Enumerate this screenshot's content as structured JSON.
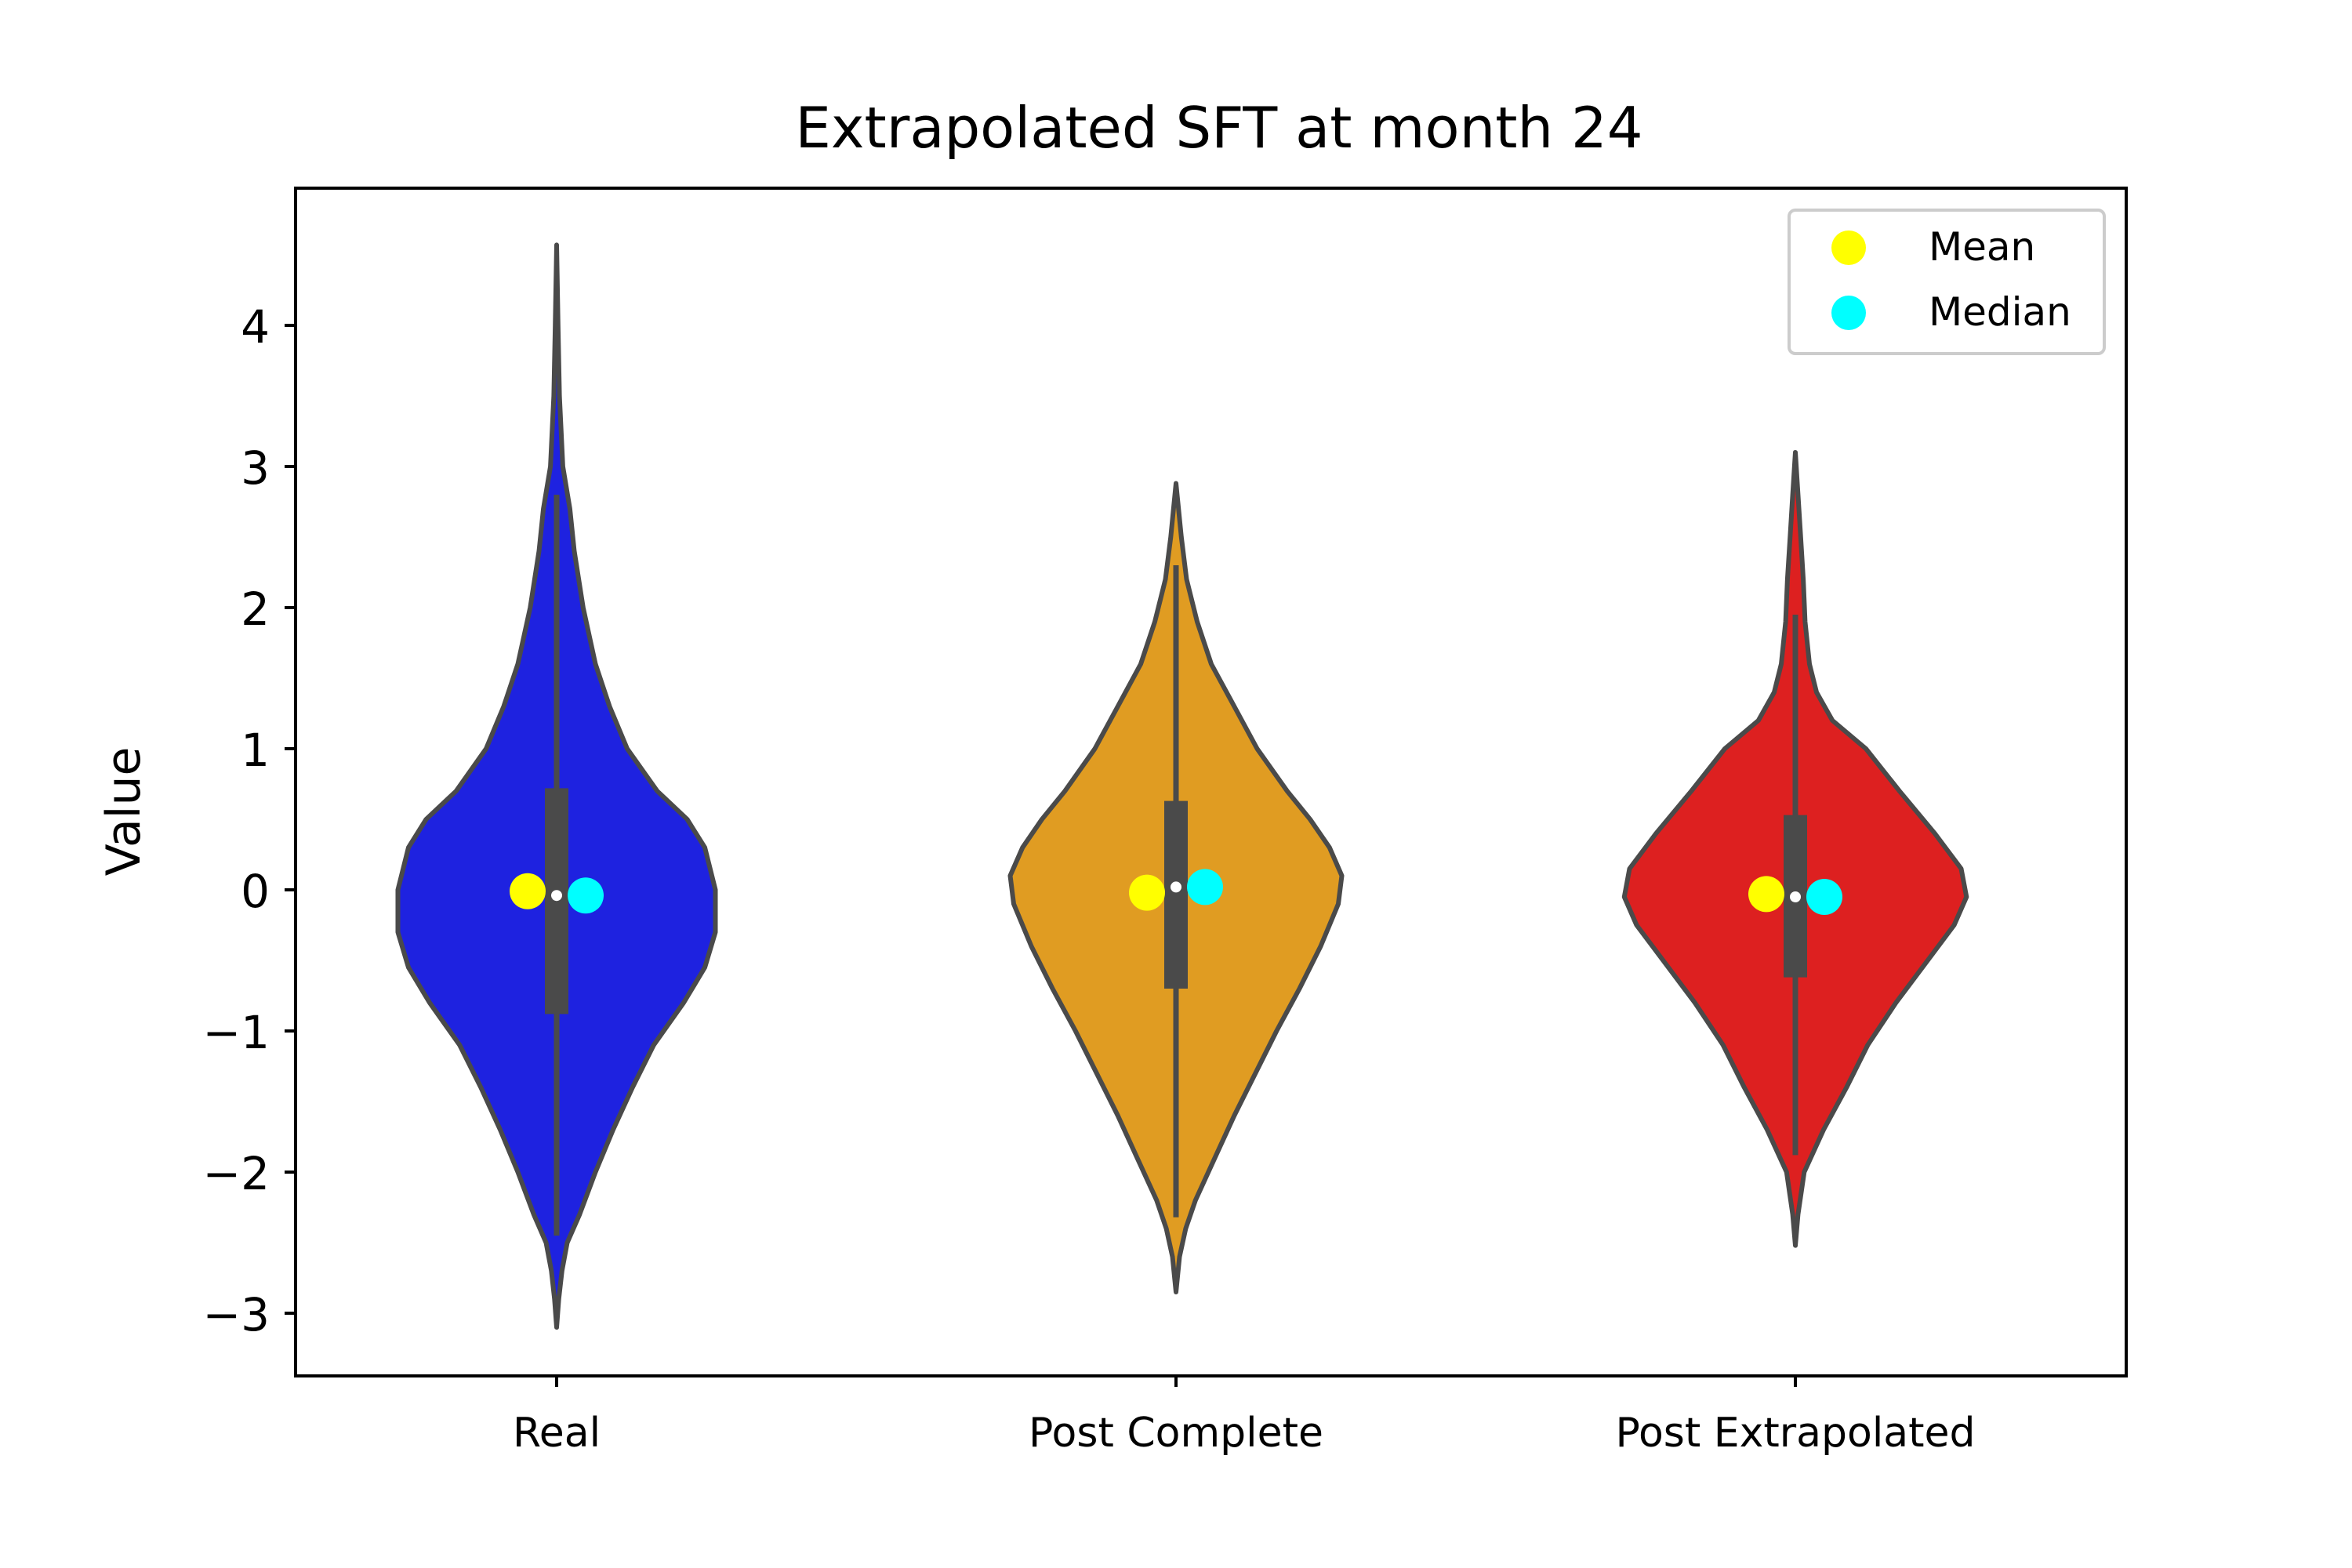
{
  "chart_data": {
    "type": "violin",
    "title": "Extrapolated SFT at month 24",
    "xlabel": "",
    "ylabel": "Value",
    "ylim": [
      -3.5,
      4.9
    ],
    "yticks": [
      -3,
      -2,
      -1,
      0,
      1,
      2,
      3,
      4
    ],
    "ytick_labels": [
      "−3",
      "−2",
      "−1",
      "0",
      "1",
      "2",
      "3",
      "4"
    ],
    "grid": false,
    "legend": {
      "placement": "top-right",
      "entries": [
        {
          "label": "Mean",
          "color": "#ffff00"
        },
        {
          "label": "Median",
          "color": "#00ffff"
        }
      ]
    },
    "categories": [
      "Real",
      "Post Complete",
      "Post Extrapolated"
    ],
    "series": [
      {
        "color": "#1e22e0",
        "whisker_low": -2.45,
        "q1": -0.88,
        "median": -0.04,
        "q3": 0.72,
        "whisker_high": 2.8,
        "mean": -0.01,
        "median_marker": -0.04,
        "density": [
          [
            -3.1,
            0.0
          ],
          [
            -2.9,
            0.012
          ],
          [
            -2.7,
            0.03
          ],
          [
            -2.5,
            0.06
          ],
          [
            -2.3,
            0.13
          ],
          [
            -2.0,
            0.22
          ],
          [
            -1.7,
            0.32
          ],
          [
            -1.4,
            0.43
          ],
          [
            -1.1,
            0.55
          ],
          [
            -0.8,
            0.72
          ],
          [
            -0.55,
            0.84
          ],
          [
            -0.3,
            0.9
          ],
          [
            0.0,
            0.9
          ],
          [
            0.3,
            0.84
          ],
          [
            0.5,
            0.74
          ],
          [
            0.7,
            0.57
          ],
          [
            1.0,
            0.4
          ],
          [
            1.3,
            0.3
          ],
          [
            1.6,
            0.22
          ],
          [
            2.0,
            0.15
          ],
          [
            2.4,
            0.1
          ],
          [
            2.7,
            0.075
          ],
          [
            3.0,
            0.035
          ],
          [
            3.5,
            0.016
          ],
          [
            4.0,
            0.008
          ],
          [
            4.57,
            0.0
          ]
        ]
      },
      {
        "color": "#e09c22",
        "whisker_low": -2.32,
        "q1": -0.7,
        "median": 0.02,
        "q3": 0.63,
        "whisker_high": 2.3,
        "mean": -0.02,
        "median_marker": 0.02,
        "density": [
          [
            -2.85,
            0.0
          ],
          [
            -2.6,
            0.02
          ],
          [
            -2.4,
            0.055
          ],
          [
            -2.2,
            0.11
          ],
          [
            -1.9,
            0.22
          ],
          [
            -1.6,
            0.33
          ],
          [
            -1.3,
            0.45
          ],
          [
            -1.0,
            0.57
          ],
          [
            -0.7,
            0.7
          ],
          [
            -0.4,
            0.82
          ],
          [
            -0.1,
            0.92
          ],
          [
            0.1,
            0.94
          ],
          [
            0.3,
            0.87
          ],
          [
            0.5,
            0.76
          ],
          [
            0.7,
            0.63
          ],
          [
            1.0,
            0.46
          ],
          [
            1.3,
            0.33
          ],
          [
            1.6,
            0.2
          ],
          [
            1.9,
            0.12
          ],
          [
            2.2,
            0.06
          ],
          [
            2.5,
            0.03
          ],
          [
            2.88,
            0.0
          ]
        ]
      },
      {
        "color": "#dd2020",
        "whisker_low": -1.88,
        "q1": -0.62,
        "median": -0.05,
        "q3": 0.53,
        "whisker_high": 1.95,
        "mean": -0.03,
        "median_marker": -0.05,
        "density": [
          [
            -2.52,
            0.0
          ],
          [
            -2.3,
            0.015
          ],
          [
            -2.0,
            0.05
          ],
          [
            -1.7,
            0.16
          ],
          [
            -1.4,
            0.29
          ],
          [
            -1.1,
            0.41
          ],
          [
            -0.8,
            0.57
          ],
          [
            -0.5,
            0.75
          ],
          [
            -0.25,
            0.9
          ],
          [
            -0.05,
            0.97
          ],
          [
            0.15,
            0.94
          ],
          [
            0.4,
            0.79
          ],
          [
            0.7,
            0.59
          ],
          [
            1.0,
            0.4
          ],
          [
            1.2,
            0.21
          ],
          [
            1.4,
            0.12
          ],
          [
            1.6,
            0.08
          ],
          [
            1.9,
            0.055
          ],
          [
            2.2,
            0.045
          ],
          [
            2.5,
            0.03
          ],
          [
            2.8,
            0.015
          ],
          [
            3.1,
            0.0
          ]
        ]
      }
    ]
  }
}
